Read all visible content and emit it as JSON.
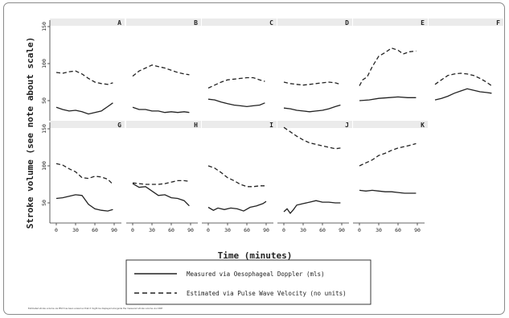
{
  "chart_data": {
    "type": "line",
    "ylabel": "Stroke volume (see note about scale)",
    "xlabel": "Time (minutes)",
    "xlim": [
      0,
      90
    ],
    "ylim": [
      25,
      150
    ],
    "yticks": [
      50,
      100,
      150
    ],
    "xticks": [
      0,
      30,
      60,
      90
    ],
    "grid": false,
    "legend_placement": "bottom-center",
    "legend": {
      "measured": "Measured via Oesophageal Doppler (mls)",
      "estimated": "Estimated via Pulse Wave Velocity (no units)"
    },
    "footnote": "Estimated stroke volume via PWV has been scaled so that it might be displayed alongside the measured stroke volume via ODM",
    "panels": [
      {
        "label": "A",
        "measured": {
          "x": [
            0,
            10,
            20,
            30,
            40,
            50,
            60,
            70,
            80,
            88
          ],
          "y": [
            41,
            38,
            36,
            37,
            35,
            32,
            34,
            36,
            42,
            47
          ]
        },
        "estimated": {
          "x": [
            0,
            10,
            20,
            30,
            40,
            50,
            60,
            70,
            80,
            88
          ],
          "y": [
            88,
            87,
            89,
            90,
            86,
            80,
            75,
            73,
            72,
            74
          ]
        }
      },
      {
        "label": "B",
        "measured": {
          "x": [
            0,
            10,
            20,
            30,
            40,
            50,
            60,
            70,
            80,
            88
          ],
          "y": [
            41,
            38,
            38,
            36,
            36,
            34,
            35,
            34,
            35,
            34
          ]
        },
        "estimated": {
          "x": [
            0,
            10,
            20,
            30,
            40,
            50,
            60,
            70,
            80,
            88
          ],
          "y": [
            83,
            90,
            94,
            98,
            96,
            94,
            91,
            88,
            86,
            85
          ]
        }
      },
      {
        "label": "C",
        "measured": {
          "x": [
            0,
            10,
            20,
            30,
            40,
            50,
            60,
            70,
            80,
            88
          ],
          "y": [
            52,
            51,
            48,
            46,
            44,
            43,
            42,
            43,
            44,
            47
          ]
        },
        "estimated": {
          "x": [
            0,
            10,
            20,
            30,
            40,
            50,
            60,
            70,
            80,
            88
          ],
          "y": [
            67,
            71,
            75,
            78,
            79,
            80,
            81,
            81,
            78,
            76
          ]
        }
      },
      {
        "label": "D",
        "measured": {
          "x": [
            0,
            10,
            20,
            30,
            40,
            50,
            60,
            70,
            80,
            88
          ],
          "y": [
            40,
            39,
            37,
            36,
            35,
            36,
            37,
            39,
            42,
            44
          ]
        },
        "estimated": {
          "x": [
            0,
            10,
            20,
            30,
            40,
            50,
            60,
            70,
            80,
            88
          ],
          "y": [
            75,
            73,
            72,
            71,
            72,
            73,
            74,
            75,
            74,
            72
          ]
        }
      },
      {
        "label": "E",
        "measured": {
          "x": [
            0,
            15,
            30,
            45,
            60,
            75,
            88
          ],
          "y": [
            50,
            51,
            53,
            54,
            55,
            54,
            54
          ]
        },
        "estimated": {
          "x": [
            0,
            5,
            12,
            20,
            30,
            40,
            50,
            60,
            68,
            78,
            88
          ],
          "y": [
            70,
            78,
            82,
            96,
            110,
            115,
            121,
            118,
            113,
            116,
            117
          ]
        }
      },
      {
        "label": "F",
        "measured": {
          "x": [
            0,
            10,
            20,
            30,
            40,
            50,
            60,
            70,
            80,
            88
          ],
          "y": [
            51,
            53,
            56,
            60,
            63,
            66,
            64,
            62,
            61,
            60
          ]
        },
        "estimated": {
          "x": [
            0,
            10,
            20,
            30,
            40,
            50,
            60,
            70,
            80,
            88
          ],
          "y": [
            72,
            78,
            84,
            86,
            87,
            86,
            84,
            80,
            75,
            70
          ]
        }
      },
      {
        "label": "G",
        "measured": {
          "x": [
            0,
            10,
            20,
            30,
            40,
            50,
            60,
            70,
            80,
            88
          ],
          "y": [
            56,
            57,
            59,
            61,
            60,
            48,
            42,
            40,
            39,
            41
          ]
        },
        "estimated": {
          "x": [
            0,
            10,
            20,
            30,
            40,
            50,
            60,
            70,
            80,
            88
          ],
          "y": [
            103,
            101,
            96,
            92,
            84,
            83,
            86,
            85,
            82,
            75
          ]
        }
      },
      {
        "label": "H",
        "measured": {
          "x": [
            0,
            10,
            20,
            30,
            40,
            50,
            60,
            70,
            80,
            88
          ],
          "y": [
            76,
            71,
            72,
            66,
            60,
            61,
            57,
            56,
            53,
            46
          ]
        },
        "estimated": {
          "x": [
            0,
            10,
            20,
            30,
            40,
            50,
            60,
            70,
            80,
            88
          ],
          "y": [
            77,
            76,
            75,
            75,
            75,
            76,
            78,
            80,
            80,
            79
          ]
        }
      },
      {
        "label": "I",
        "measured": {
          "x": [
            0,
            8,
            15,
            25,
            35,
            45,
            55,
            65,
            75,
            85,
            90
          ],
          "y": [
            44,
            40,
            43,
            41,
            43,
            42,
            39,
            44,
            46,
            49,
            52
          ]
        },
        "estimated": {
          "x": [
            0,
            10,
            20,
            30,
            40,
            50,
            60,
            70,
            80,
            88
          ],
          "y": [
            100,
            97,
            91,
            84,
            80,
            75,
            72,
            72,
            73,
            73
          ]
        }
      },
      {
        "label": "J",
        "measured": {
          "x": [
            0,
            5,
            10,
            15,
            20,
            30,
            40,
            50,
            60,
            70,
            80,
            88
          ],
          "y": [
            38,
            42,
            36,
            41,
            47,
            49,
            51,
            53,
            51,
            51,
            50,
            50
          ]
        },
        "estimated": {
          "x": [
            0,
            10,
            20,
            30,
            40,
            50,
            60,
            70,
            80,
            88
          ],
          "y": [
            152,
            146,
            140,
            135,
            131,
            129,
            127,
            125,
            123,
            124
          ]
        }
      },
      {
        "label": "K",
        "measured": {
          "x": [
            0,
            10,
            20,
            30,
            40,
            50,
            60,
            70,
            80,
            88
          ],
          "y": [
            67,
            66,
            67,
            66,
            65,
            65,
            64,
            63,
            63,
            63
          ]
        },
        "estimated": {
          "x": [
            0,
            10,
            20,
            30,
            40,
            50,
            60,
            70,
            80,
            88
          ],
          "y": [
            100,
            104,
            108,
            114,
            117,
            121,
            124,
            126,
            128,
            130
          ]
        }
      }
    ]
  }
}
